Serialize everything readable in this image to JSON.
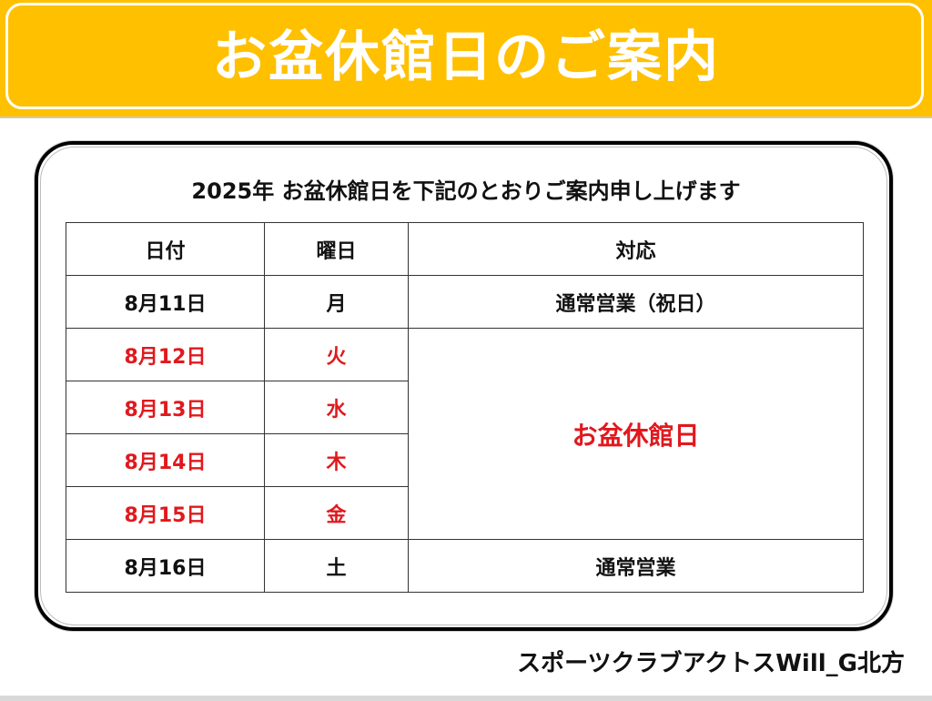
{
  "banner": {
    "title": "お盆休館日のご案内"
  },
  "notice": {
    "subtitle": "2025年 お盆休館日を下記のとおりご案内申し上げます",
    "headers": {
      "date": "日付",
      "weekday": "曜日",
      "status": "対応"
    },
    "rows": [
      {
        "date": "8月11日",
        "weekday": "月",
        "status": "通常営業（祝日）"
      },
      {
        "date": "8月12日",
        "weekday": "火"
      },
      {
        "date": "8月13日",
        "weekday": "水"
      },
      {
        "date": "8月14日",
        "weekday": "木"
      },
      {
        "date": "8月15日",
        "weekday": "金"
      },
      {
        "date": "8月16日",
        "weekday": "土",
        "status": "通常営業"
      }
    ],
    "holiday_label": "お盆休館日"
  },
  "footer": {
    "club_name": "スポーツクラブアクトスWill_G北方"
  },
  "colors": {
    "banner": "#FFC000",
    "holiday_red": "#E0191E",
    "text": "#111111"
  }
}
